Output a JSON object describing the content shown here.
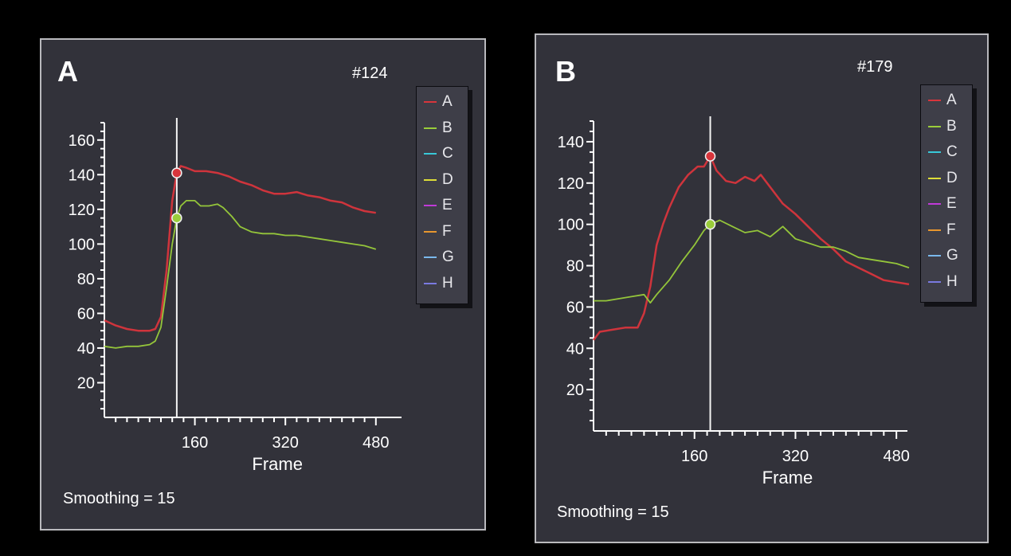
{
  "colors": {
    "background": "#000000",
    "panel": "#32323a",
    "panel_border": "#b9b9bd",
    "axis": "#ffffff",
    "legend_bg": "#3e3e48"
  },
  "chart_data": [
    {
      "type": "line",
      "panel_label": "A",
      "panel_id": "#124",
      "footnote": "Smoothing = 15",
      "xlabel": "Frame",
      "ylabel": "",
      "xlim": [
        0,
        500
      ],
      "ylim": [
        0,
        170
      ],
      "xticks": [
        160,
        320,
        480
      ],
      "yticks": [
        20,
        40,
        60,
        80,
        100,
        120,
        140,
        160
      ],
      "cursor": {
        "x": 128,
        "values": [
          {
            "series": "A",
            "y": 141
          },
          {
            "series": "B",
            "y": 115
          }
        ]
      },
      "legend": [
        {
          "label": "A",
          "color": "#d8353c"
        },
        {
          "label": "B",
          "color": "#9acd3a"
        },
        {
          "label": "C",
          "color": "#38c8d8"
        },
        {
          "label": "D",
          "color": "#dede38"
        },
        {
          "label": "E",
          "color": "#c03ad8"
        },
        {
          "label": "F",
          "color": "#e8962e"
        },
        {
          "label": "G",
          "color": "#7ab8ec"
        },
        {
          "label": "H",
          "color": "#7a7ae0"
        }
      ],
      "series": [
        {
          "name": "A",
          "color": "#d8353c",
          "x": [
            0,
            20,
            40,
            60,
            80,
            90,
            100,
            110,
            120,
            128,
            135,
            145,
            160,
            180,
            200,
            220,
            240,
            260,
            280,
            300,
            320,
            340,
            360,
            380,
            400,
            420,
            440,
            460,
            480
          ],
          "y": [
            56,
            53,
            51,
            50,
            50,
            51,
            58,
            85,
            125,
            141,
            145,
            144,
            142,
            142,
            141,
            139,
            136,
            134,
            131,
            129,
            129,
            130,
            128,
            127,
            125,
            124,
            121,
            119,
            118
          ]
        },
        {
          "name": "B",
          "color": "#9acd3a",
          "x": [
            0,
            20,
            40,
            60,
            80,
            90,
            100,
            110,
            120,
            128,
            135,
            145,
            160,
            170,
            185,
            200,
            210,
            225,
            240,
            260,
            280,
            300,
            320,
            340,
            360,
            380,
            400,
            420,
            440,
            460,
            480
          ],
          "y": [
            41,
            40,
            41,
            41,
            42,
            44,
            52,
            75,
            100,
            115,
            122,
            125,
            125,
            122,
            122,
            123,
            121,
            116,
            110,
            107,
            106,
            106,
            105,
            105,
            104,
            103,
            102,
            101,
            100,
            99,
            97
          ]
        }
      ]
    },
    {
      "type": "line",
      "panel_label": "B",
      "panel_id": "#179",
      "footnote": "Smoothing = 15",
      "xlabel": "Frame",
      "ylabel": "",
      "xlim": [
        0,
        500
      ],
      "ylim": [
        0,
        150
      ],
      "xticks": [
        160,
        320,
        480
      ],
      "yticks": [
        20,
        40,
        60,
        80,
        100,
        120,
        140
      ],
      "cursor": {
        "x": 185,
        "values": [
          {
            "series": "A",
            "y": 133
          },
          {
            "series": "B",
            "y": 100
          }
        ]
      },
      "legend": [
        {
          "label": "A",
          "color": "#d8353c"
        },
        {
          "label": "B",
          "color": "#9acd3a"
        },
        {
          "label": "C",
          "color": "#38c8d8"
        },
        {
          "label": "D",
          "color": "#dede38"
        },
        {
          "label": "E",
          "color": "#c03ad8"
        },
        {
          "label": "F",
          "color": "#e8962e"
        },
        {
          "label": "G",
          "color": "#7ab8ec"
        },
        {
          "label": "H",
          "color": "#7a7ae0"
        }
      ],
      "series": [
        {
          "name": "A",
          "color": "#d8353c",
          "x": [
            0,
            10,
            30,
            50,
            70,
            80,
            90,
            100,
            110,
            120,
            135,
            150,
            165,
            175,
            185,
            195,
            210,
            225,
            240,
            255,
            265,
            280,
            300,
            320,
            340,
            360,
            380,
            400,
            420,
            440,
            460,
            480,
            500
          ],
          "y": [
            44,
            48,
            49,
            50,
            50,
            57,
            70,
            90,
            100,
            108,
            118,
            124,
            128,
            128,
            133,
            126,
            121,
            120,
            123,
            121,
            124,
            118,
            110,
            105,
            99,
            93,
            88,
            82,
            79,
            76,
            73,
            72,
            71
          ]
        },
        {
          "name": "B",
          "color": "#9acd3a",
          "x": [
            0,
            20,
            40,
            60,
            80,
            90,
            100,
            120,
            140,
            160,
            175,
            185,
            200,
            220,
            240,
            260,
            280,
            300,
            320,
            340,
            360,
            380,
            400,
            420,
            440,
            460,
            480,
            500
          ],
          "y": [
            63,
            63,
            64,
            65,
            66,
            62,
            66,
            73,
            82,
            90,
            97,
            100,
            102,
            99,
            96,
            97,
            94,
            99,
            93,
            91,
            89,
            89,
            87,
            84,
            83,
            82,
            81,
            79
          ]
        }
      ]
    }
  ]
}
